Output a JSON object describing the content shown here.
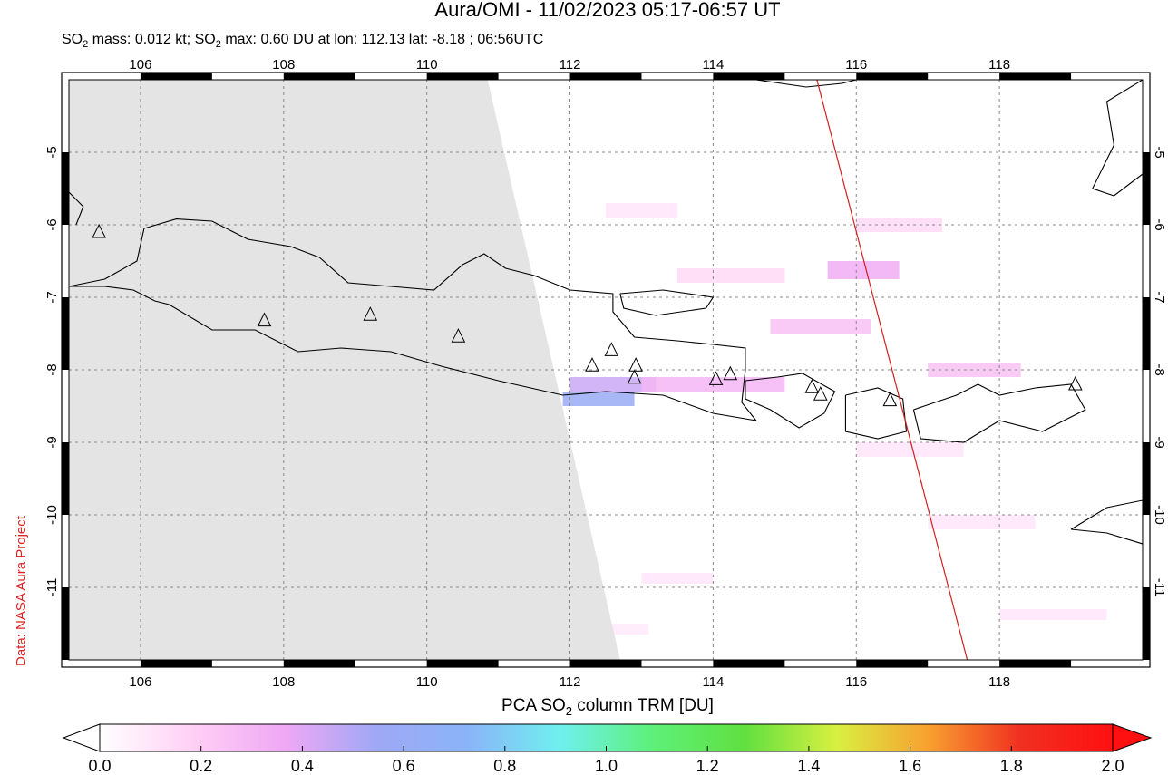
{
  "chart_data": {
    "type": "heatmap",
    "title": "Aura/OMI - 11/02/2023 05:17-06:57 UT",
    "subtitle_parts": [
      "SO",
      "2",
      " mass: 0.012 kt; SO",
      "2",
      " max: 0.60 DU at lon: 112.13 lat: -8.18 ; 06:56UTC"
    ],
    "credit": "Data: NASA Aura Project",
    "colorbar_label_parts": [
      "PCA SO",
      "2",
      " column TRM [DU]"
    ],
    "lon_range": [
      105.0,
      120.0
    ],
    "lat_range": [
      -12.0,
      -4.0
    ],
    "lon_ticks": [
      106,
      108,
      110,
      112,
      114,
      116,
      118
    ],
    "lat_ticks": [
      -5,
      -6,
      -7,
      -8,
      -9,
      -10,
      -11
    ],
    "grid": true,
    "colorbar": {
      "min": 0.0,
      "max": 2.0,
      "ticks": [
        "0.0",
        "0.2",
        "0.4",
        "0.6",
        "0.8",
        "1.0",
        "1.2",
        "1.4",
        "1.6",
        "1.8",
        "2.0"
      ],
      "colors": [
        "#ffffff",
        "#ffd0f5",
        "#f0a8f5",
        "#9fa8f5",
        "#8ab4f8",
        "#6ff0f0",
        "#5ef07a",
        "#60e040",
        "#d8f040",
        "#f8a030",
        "#f03020",
        "#ff1010"
      ]
    },
    "no_data_region": [
      [
        105.0,
        -4.0
      ],
      [
        110.85,
        -4.0
      ],
      [
        112.7,
        -12.0
      ],
      [
        105.0,
        -12.0
      ]
    ],
    "track_line": [
      [
        115.45,
        -4.0
      ],
      [
        117.55,
        -12.0
      ]
    ],
    "max_location": {
      "lon": 112.13,
      "lat": -8.18,
      "value": 0.6
    },
    "volcanoes": [
      [
        105.42,
        -6.1
      ],
      [
        107.73,
        -7.32
      ],
      [
        109.21,
        -7.24
      ],
      [
        110.44,
        -7.54
      ],
      [
        112.31,
        -7.94
      ],
      [
        112.58,
        -7.73
      ],
      [
        112.92,
        -7.94
      ],
      [
        112.9,
        -8.11
      ],
      [
        114.04,
        -8.13
      ],
      [
        114.24,
        -8.06
      ],
      [
        115.38,
        -8.24
      ],
      [
        115.5,
        -8.34
      ],
      [
        116.47,
        -8.42
      ],
      [
        119.06,
        -8.2
      ]
    ],
    "so2_patches": [
      {
        "lon": [
          111.9,
          112.9
        ],
        "lat": [
          -8.3,
          -8.5
        ],
        "value": 0.6
      },
      {
        "lon": [
          112.0,
          113.2
        ],
        "lat": [
          -8.1,
          -8.3
        ],
        "value": 0.45
      },
      {
        "lon": [
          113.0,
          115.0
        ],
        "lat": [
          -8.1,
          -8.3
        ],
        "value": 0.3
      },
      {
        "lon": [
          115.6,
          116.6
        ],
        "lat": [
          -6.5,
          -6.75
        ],
        "value": 0.35
      },
      {
        "lon": [
          114.8,
          116.2
        ],
        "lat": [
          -7.3,
          -7.5
        ],
        "value": 0.25
      },
      {
        "lon": [
          116.0,
          117.2
        ],
        "lat": [
          -5.9,
          -6.1
        ],
        "value": 0.15
      },
      {
        "lon": [
          117.0,
          118.3
        ],
        "lat": [
          -7.9,
          -8.1
        ],
        "value": 0.25
      },
      {
        "lon": [
          113.5,
          115.0
        ],
        "lat": [
          -6.6,
          -6.8
        ],
        "value": 0.15
      },
      {
        "lon": [
          112.5,
          113.5
        ],
        "lat": [
          -5.7,
          -5.9
        ],
        "value": 0.1
      },
      {
        "lon": [
          116.0,
          117.5
        ],
        "lat": [
          -9.0,
          -9.2
        ],
        "value": 0.1
      },
      {
        "lon": [
          117.0,
          118.5
        ],
        "lat": [
          -10.0,
          -10.2
        ],
        "value": 0.1
      },
      {
        "lon": [
          113.0,
          114.0
        ],
        "lat": [
          -10.8,
          -10.95
        ],
        "value": 0.1
      },
      {
        "lon": [
          118.0,
          119.5
        ],
        "lat": [
          -11.3,
          -11.45
        ],
        "value": 0.1
      },
      {
        "lon": [
          112.3,
          113.1
        ],
        "lat": [
          -11.5,
          -11.65
        ],
        "value": 0.08
      }
    ],
    "coastlines": [
      [
        [
          105.0,
          -6.85
        ],
        [
          105.5,
          -6.75
        ],
        [
          105.95,
          -6.5
        ],
        [
          106.05,
          -6.05
        ],
        [
          106.5,
          -5.92
        ],
        [
          107.0,
          -5.95
        ],
        [
          107.5,
          -6.2
        ],
        [
          108.1,
          -6.3
        ],
        [
          108.5,
          -6.45
        ],
        [
          108.9,
          -6.8
        ],
        [
          109.5,
          -6.85
        ],
        [
          110.1,
          -6.9
        ],
        [
          110.5,
          -6.55
        ],
        [
          110.8,
          -6.4
        ],
        [
          111.1,
          -6.6
        ],
        [
          111.5,
          -6.7
        ],
        [
          112.0,
          -6.9
        ],
        [
          112.6,
          -6.95
        ],
        [
          112.6,
          -7.2
        ],
        [
          112.9,
          -7.55
        ],
        [
          113.5,
          -7.6
        ],
        [
          114.0,
          -7.65
        ],
        [
          114.45,
          -7.7
        ],
        [
          114.45,
          -8.0
        ],
        [
          114.4,
          -8.45
        ],
        [
          114.6,
          -8.7
        ],
        [
          114.0,
          -8.6
        ],
        [
          113.3,
          -8.35
        ],
        [
          112.5,
          -8.3
        ],
        [
          111.9,
          -8.35
        ],
        [
          111.0,
          -8.15
        ],
        [
          110.2,
          -7.95
        ],
        [
          109.5,
          -7.75
        ],
        [
          108.8,
          -7.7
        ],
        [
          108.2,
          -7.75
        ],
        [
          107.6,
          -7.45
        ],
        [
          107.0,
          -7.45
        ],
        [
          106.4,
          -7.1
        ],
        [
          106.2,
          -7.05
        ],
        [
          105.9,
          -6.9
        ],
        [
          105.5,
          -6.85
        ],
        [
          105.0,
          -6.85
        ]
      ],
      [
        [
          112.7,
          -6.95
        ],
        [
          113.3,
          -6.9
        ],
        [
          114.0,
          -7.0
        ],
        [
          113.9,
          -7.15
        ],
        [
          113.2,
          -7.25
        ],
        [
          112.75,
          -7.15
        ],
        [
          112.7,
          -6.95
        ]
      ],
      [
        [
          114.45,
          -8.15
        ],
        [
          114.9,
          -8.1
        ],
        [
          115.25,
          -8.05
        ],
        [
          115.7,
          -8.3
        ],
        [
          115.55,
          -8.6
        ],
        [
          115.2,
          -8.8
        ],
        [
          114.8,
          -8.55
        ],
        [
          114.45,
          -8.4
        ],
        [
          114.45,
          -8.15
        ]
      ],
      [
        [
          115.85,
          -8.35
        ],
        [
          116.3,
          -8.25
        ],
        [
          116.65,
          -8.4
        ],
        [
          116.7,
          -8.85
        ],
        [
          116.3,
          -8.95
        ],
        [
          115.85,
          -8.85
        ],
        [
          115.85,
          -8.35
        ]
      ],
      [
        [
          116.8,
          -8.55
        ],
        [
          117.4,
          -8.35
        ],
        [
          117.7,
          -8.2
        ],
        [
          118.0,
          -8.35
        ],
        [
          118.5,
          -8.25
        ],
        [
          119.0,
          -8.2
        ],
        [
          119.2,
          -8.55
        ],
        [
          118.6,
          -8.85
        ],
        [
          118.0,
          -8.7
        ],
        [
          117.5,
          -9.0
        ],
        [
          116.9,
          -8.95
        ],
        [
          116.8,
          -8.55
        ]
      ],
      [
        [
          119.0,
          -10.2
        ],
        [
          119.5,
          -9.9
        ],
        [
          120.0,
          -9.8
        ],
        [
          120.0,
          -10.4
        ],
        [
          119.5,
          -10.25
        ],
        [
          119.0,
          -10.2
        ]
      ],
      [
        [
          114.6,
          -4.0
        ],
        [
          115.3,
          -4.1
        ],
        [
          115.8,
          -4.05
        ],
        [
          116.0,
          -4.0
        ]
      ],
      [
        [
          120.0,
          -4.0
        ],
        [
          119.5,
          -4.3
        ],
        [
          119.6,
          -4.9
        ],
        [
          119.3,
          -5.5
        ],
        [
          119.6,
          -5.6
        ],
        [
          120.0,
          -5.3
        ]
      ],
      [
        [
          105.0,
          -5.55
        ],
        [
          105.2,
          -5.75
        ],
        [
          105.1,
          -6.0
        ]
      ]
    ]
  }
}
